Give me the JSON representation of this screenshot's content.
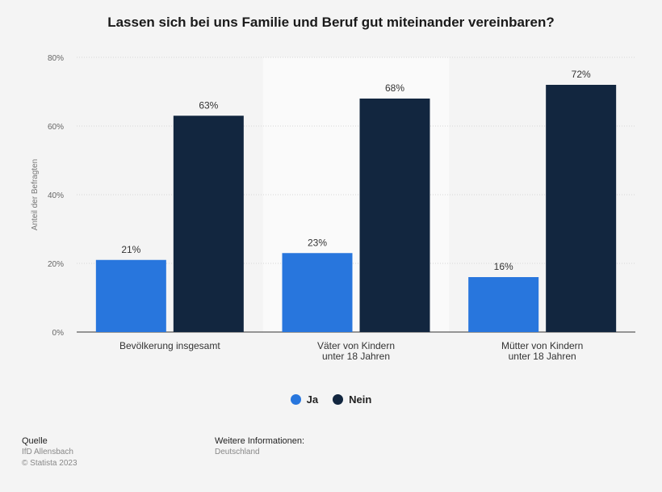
{
  "title": "Lassen sich bei uns Familie und Beruf gut miteinander vereinbaren?",
  "colors": {
    "ja": "#2876dd",
    "nein": "#12263f",
    "band": "#fafafa",
    "grid": "#d6d6d6"
  },
  "chart_data": {
    "type": "bar",
    "title": "Lassen sich bei uns Familie und Beruf gut miteinander vereinbaren?",
    "ylabel": "Anteil der Befragten",
    "ylim": [
      0,
      80
    ],
    "yticks": [
      "0%",
      "20%",
      "40%",
      "60%",
      "80%"
    ],
    "ytick_values": [
      0,
      20,
      40,
      60,
      80
    ],
    "categories": [
      [
        "Bevölkerung insgesamt"
      ],
      [
        "Väter von Kindern",
        "unter 18 Jahren"
      ],
      [
        "Mütter von Kindern",
        "unter 18 Jahren"
      ]
    ],
    "series": [
      {
        "name": "Ja",
        "values": [
          21,
          23,
          16
        ],
        "labels": [
          "21%",
          "23%",
          "16%"
        ]
      },
      {
        "name": "Nein",
        "values": [
          63,
          68,
          72
        ],
        "labels": [
          "63%",
          "68%",
          "72%"
        ]
      }
    ],
    "grid": true,
    "legend": "bottom-center"
  },
  "legend": {
    "ja": "Ja",
    "nein": "Nein"
  },
  "footer": {
    "source_label": "Quelle",
    "source_name": "IfD Allensbach",
    "copyright": "© Statista 2023",
    "info_label": "Weitere Informationen:",
    "info_value": "Deutschland"
  }
}
